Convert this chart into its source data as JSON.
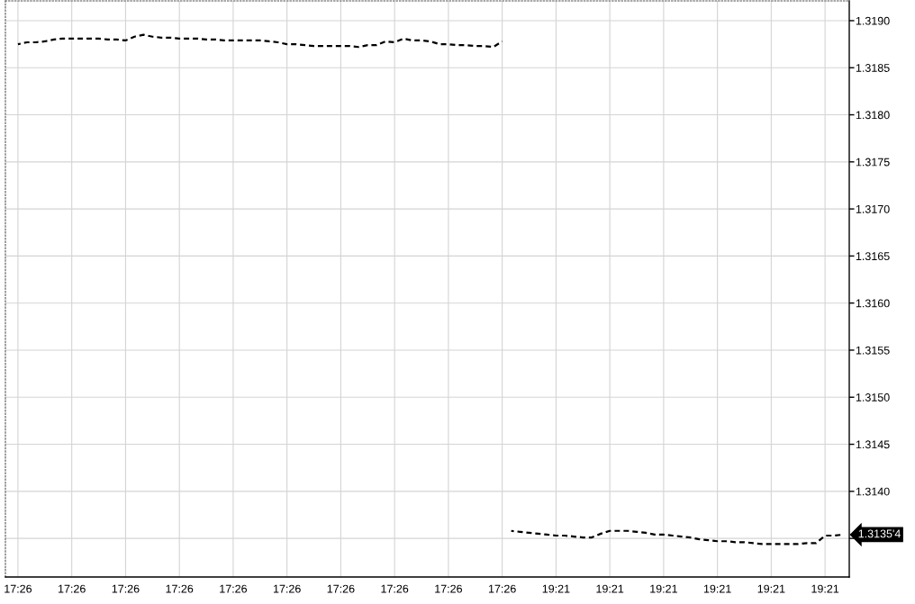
{
  "chart_data": {
    "type": "line",
    "categories": [
      "17:26",
      null,
      null,
      null,
      null,
      null,
      "17:26",
      null,
      null,
      null,
      null,
      null,
      "17:26",
      null,
      null,
      null,
      null,
      null,
      "17:26",
      null,
      null,
      null,
      null,
      null,
      "17:26",
      null,
      null,
      null,
      null,
      null,
      "17:26",
      null,
      null,
      null,
      null,
      null,
      "17:26",
      null,
      null,
      null,
      null,
      null,
      "17:26",
      null,
      null,
      null,
      null,
      null,
      "17:26",
      null,
      null,
      null,
      null,
      null,
      "17:26",
      null,
      null,
      null,
      null,
      null,
      "19:21",
      null,
      null,
      null,
      null,
      null,
      "19:21",
      null,
      null,
      null,
      null,
      null,
      "19:21",
      null,
      null,
      null,
      null,
      null,
      "19:21",
      null,
      null,
      null,
      null,
      null,
      "19:21",
      null,
      null,
      null,
      null,
      null,
      "19:21",
      null,
      null
    ],
    "series": [
      {
        "color": "#000000",
        "values": [
          1.31875,
          1.31877,
          1.31877,
          1.31878,
          1.3188,
          1.31881,
          1.31881,
          1.31881,
          1.31881,
          1.31881,
          1.3188,
          1.3188,
          1.31879,
          1.31883,
          1.31885,
          1.31883,
          1.31882,
          1.31882,
          1.31881,
          1.31881,
          1.31881,
          1.3188,
          1.3188,
          1.31879,
          1.31879,
          1.31879,
          1.31879,
          1.31879,
          1.31878,
          1.31877,
          1.31875,
          1.31875,
          1.31874,
          1.31873,
          1.31873,
          1.31873,
          1.31873,
          1.31873,
          1.31872,
          1.31874,
          1.31874,
          1.31878,
          1.31877,
          1.31881,
          1.31879,
          1.31879,
          1.31878,
          1.31875,
          1.31875,
          1.31874,
          1.31874,
          1.31873,
          1.31873,
          1.31872,
          1.31878,
          null,
          null,
          null,
          null,
          null,
          null,
          null,
          null,
          null,
          null,
          null,
          null,
          null,
          null,
          null,
          null,
          null,
          null,
          null,
          null,
          null,
          null,
          null,
          null,
          null,
          null,
          null,
          null,
          null,
          null,
          null,
          null,
          null,
          null,
          null,
          null,
          null,
          null
        ]
      },
      {
        "color": "#000000",
        "values": [
          null,
          null,
          null,
          null,
          null,
          null,
          null,
          null,
          null,
          null,
          null,
          null,
          null,
          null,
          null,
          null,
          null,
          null,
          null,
          null,
          null,
          null,
          null,
          null,
          null,
          null,
          null,
          null,
          null,
          null,
          null,
          null,
          null,
          null,
          null,
          null,
          null,
          null,
          null,
          null,
          null,
          null,
          null,
          null,
          null,
          null,
          null,
          null,
          null,
          null,
          null,
          null,
          null,
          null,
          null,
          1.31358,
          1.31357,
          1.31356,
          1.31355,
          1.31354,
          1.31353,
          1.31353,
          1.31352,
          1.31351,
          1.31351,
          1.31355,
          1.31358,
          1.31358,
          1.31358,
          1.31357,
          1.31356,
          1.31354,
          1.31354,
          1.31353,
          1.31352,
          1.31351,
          1.31349,
          1.31348,
          1.31347,
          1.31347,
          1.31346,
          1.31346,
          1.31345,
          1.31344,
          1.31344,
          1.31344,
          1.31344,
          1.31344,
          1.31345,
          1.31345,
          1.31353,
          1.31353,
          1.31354
        ]
      }
    ],
    "ylim": [
      1.31309,
      1.31921
    ],
    "yticks": [
      {
        "value": 1.3135,
        "label": null
      },
      {
        "value": 1.314,
        "label": "1.3140"
      },
      {
        "value": 1.3145,
        "label": "1.3145"
      },
      {
        "value": 1.315,
        "label": "1.3150"
      },
      {
        "value": 1.3155,
        "label": "1.3155"
      },
      {
        "value": 1.316,
        "label": "1.3160"
      },
      {
        "value": 1.3165,
        "label": "1.3165"
      },
      {
        "value": 1.317,
        "label": "1.3170"
      },
      {
        "value": 1.3175,
        "label": "1.3175"
      },
      {
        "value": 1.318,
        "label": "1.3180"
      },
      {
        "value": 1.3185,
        "label": "1.3185"
      },
      {
        "value": 1.319,
        "label": "1.3190"
      }
    ],
    "grid": true,
    "line_style": "dashed",
    "annotations": [
      "1.3135'4"
    ]
  }
}
